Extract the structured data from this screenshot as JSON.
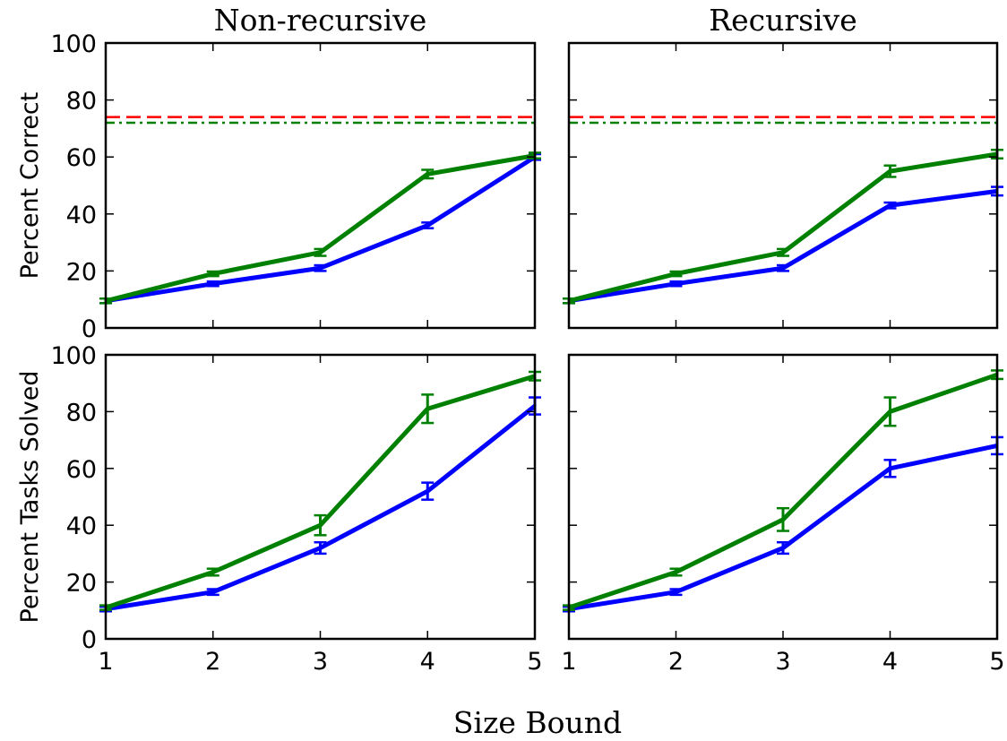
{
  "figure": {
    "xlabel": "Size Bound"
  },
  "chart_data": [
    {
      "type": "line",
      "title": "Non-recursive",
      "ylabel": "Percent Correct",
      "xlim": [
        1,
        5
      ],
      "ylim": [
        0,
        100
      ],
      "xticks": [
        1,
        2,
        3,
        4,
        5
      ],
      "yticks": [
        0,
        20,
        40,
        60,
        80,
        100
      ],
      "x": [
        1,
        2,
        3,
        4,
        5
      ],
      "series": [
        {
          "color": "#0000ff",
          "values": [
            9.5,
            15.5,
            21,
            36,
            60
          ],
          "err": [
            0.8,
            0.8,
            1,
            1,
            1
          ]
        },
        {
          "color": "#008000",
          "values": [
            9.5,
            19,
            26.5,
            54,
            60.5
          ],
          "err": [
            0.8,
            0.8,
            1.2,
            1.5,
            1
          ]
        }
      ],
      "hlines": [
        {
          "y": 74,
          "style": "dashed",
          "color": "#ff0000"
        },
        {
          "y": 72,
          "style": "dashdot",
          "color": "#008000"
        }
      ]
    },
    {
      "type": "line",
      "title": "Recursive",
      "ylabel": "",
      "xlim": [
        1,
        5
      ],
      "ylim": [
        0,
        100
      ],
      "xticks": [
        1,
        2,
        3,
        4,
        5
      ],
      "yticks": [
        0,
        20,
        40,
        60,
        80,
        100
      ],
      "x": [
        1,
        2,
        3,
        4,
        5
      ],
      "series": [
        {
          "color": "#0000ff",
          "values": [
            9.5,
            15.5,
            21,
            43,
            48
          ],
          "err": [
            0.8,
            0.8,
            1,
            1,
            1.5
          ]
        },
        {
          "color": "#008000",
          "values": [
            9.5,
            19,
            26.5,
            55,
            61
          ],
          "err": [
            0.8,
            0.8,
            1.2,
            2,
            1.5
          ]
        }
      ],
      "hlines": [
        {
          "y": 74,
          "style": "dashed",
          "color": "#ff0000"
        },
        {
          "y": 72,
          "style": "dashdot",
          "color": "#008000"
        }
      ]
    },
    {
      "type": "line",
      "title": "",
      "ylabel": "Percent Tasks Solved",
      "xlim": [
        1,
        5
      ],
      "ylim": [
        0,
        100
      ],
      "xticks": [
        1,
        2,
        3,
        4,
        5
      ],
      "yticks": [
        0,
        20,
        40,
        60,
        80,
        100
      ],
      "x": [
        1,
        2,
        3,
        4,
        5
      ],
      "series": [
        {
          "color": "#0000ff",
          "values": [
            10.5,
            16.5,
            32,
            52,
            82
          ],
          "err": [
            0.8,
            1,
            2,
            3,
            3
          ]
        },
        {
          "color": "#008000",
          "values": [
            11,
            23.5,
            40,
            81,
            92.5
          ],
          "err": [
            0.8,
            1.2,
            3.5,
            5,
            1.5
          ]
        }
      ],
      "hlines": []
    },
    {
      "type": "line",
      "title": "",
      "ylabel": "",
      "xlim": [
        1,
        5
      ],
      "ylim": [
        0,
        100
      ],
      "xticks": [
        1,
        2,
        3,
        4,
        5
      ],
      "yticks": [
        0,
        20,
        40,
        60,
        80,
        100
      ],
      "x": [
        1,
        2,
        3,
        4,
        5
      ],
      "series": [
        {
          "color": "#0000ff",
          "values": [
            10.5,
            16.5,
            32,
            60,
            68
          ],
          "err": [
            0.8,
            1,
            2,
            3,
            3
          ]
        },
        {
          "color": "#008000",
          "values": [
            11,
            23.5,
            42,
            80,
            93
          ],
          "err": [
            0.8,
            1.2,
            4,
            5,
            1.5
          ]
        }
      ],
      "hlines": []
    }
  ]
}
